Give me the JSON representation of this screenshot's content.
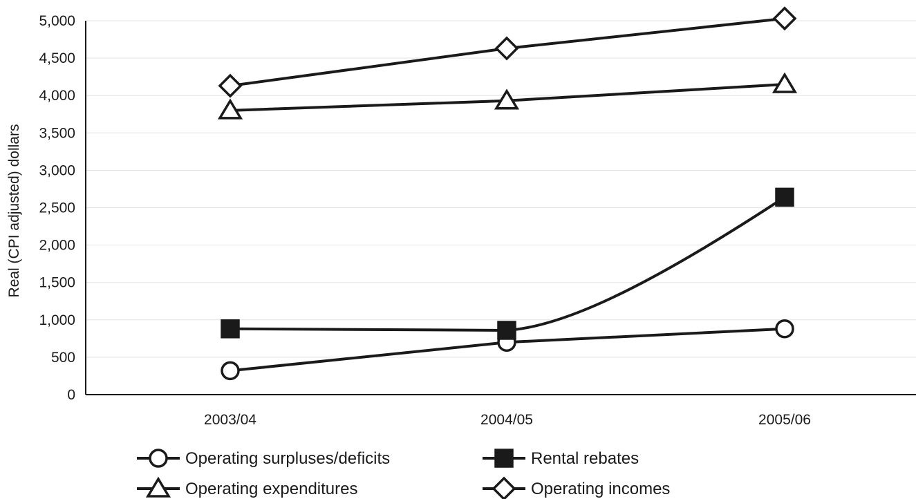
{
  "chart_data": {
    "type": "line",
    "title": "",
    "xlabel": "",
    "ylabel": "Real (CPI adjusted) dollars",
    "categories": [
      "2003/04",
      "2004/05",
      "2005/06"
    ],
    "ylim": [
      0,
      5000
    ],
    "yticks": [
      0,
      500,
      1000,
      1500,
      2000,
      2500,
      3000,
      3500,
      4000,
      4500,
      5000
    ],
    "ytick_labels": [
      "0",
      "500",
      "1,000",
      "1,500",
      "2,000",
      "2,500",
      "3,000",
      "3,500",
      "4,000",
      "4,500",
      "5,000"
    ],
    "grid": true,
    "legend_position": "bottom",
    "series": [
      {
        "name": "Operating surpluses/deficits",
        "marker": "circle-open",
        "values": [
          320,
          700,
          880
        ]
      },
      {
        "name": "Rental rebates",
        "marker": "square-filled",
        "values": [
          880,
          860,
          2640
        ]
      },
      {
        "name": "Operating expenditures",
        "marker": "triangle-open",
        "values": [
          3800,
          3930,
          4150
        ]
      },
      {
        "name": "Operating incomes",
        "marker": "diamond-open",
        "values": [
          4130,
          4630,
          5030
        ]
      }
    ],
    "colors": {
      "line": "#1a1a1a",
      "grid": "#e3e3e3",
      "axis": "#1a1a1a"
    }
  }
}
